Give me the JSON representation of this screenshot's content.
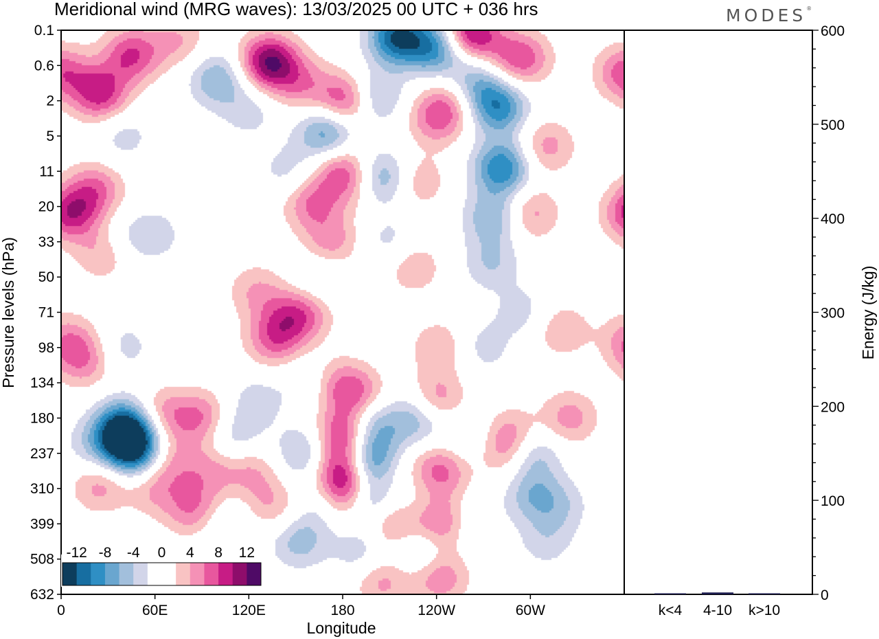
{
  "chart_data": {
    "type": "heatmap",
    "title": "Meridional wind (MRG waves):  13/03/2025  00 UTC  + 036 hrs",
    "brand": "MODES",
    "xlabel": "Longitude",
    "ylabel": "Pressure levels (hPa)",
    "x_ticks": [
      "0",
      "60E",
      "120E",
      "180",
      "120W",
      "60W"
    ],
    "y_ticks": [
      "0.1",
      "0.6",
      "2",
      "5",
      "11",
      "20",
      "33",
      "50",
      "71",
      "98",
      "134",
      "180",
      "237",
      "310",
      "399",
      "508",
      "632"
    ],
    "colorbar": {
      "labels": [
        "-12",
        "-8",
        "-4",
        "0",
        "4",
        "8",
        "12"
      ],
      "colors": [
        "#0d3d5c",
        "#176ea1",
        "#2f8fc4",
        "#6aa6cf",
        "#a2bfdc",
        "#d2d5e9",
        "#ffffff",
        "#ffffff",
        "#f9c3c3",
        "#f591b6",
        "#e8579e",
        "#c71c85",
        "#8e0d6b",
        "#4f0a66"
      ]
    },
    "energy_bar": {
      "ylabel": "Energy (J/kg)",
      "ylim": [
        0,
        600
      ],
      "y_ticks": [
        "0",
        "100",
        "200",
        "300",
        "400",
        "500",
        "600"
      ],
      "categories": [
        "k<4",
        "4-10",
        "k>10"
      ],
      "values": [
        0.5,
        2,
        0.5
      ]
    },
    "field_blobs": [
      {
        "x": 25,
        "y": 1.8,
        "v": 9
      },
      {
        "x": 45,
        "y": 0.7,
        "v": 8
      },
      {
        "x": 22,
        "y": 4.5,
        "v": 6
      },
      {
        "x": 0,
        "y": 1.2,
        "v": 7
      },
      {
        "x": 40,
        "y": 3.0,
        "v": -3
      },
      {
        "x": 75,
        "y": 0.3,
        "v": 4
      },
      {
        "x": 6,
        "y": 5.2,
        "v": 9
      },
      {
        "x": 28,
        "y": 6.3,
        "v": 5
      },
      {
        "x": 38,
        "y": 6.0,
        "v": -3
      },
      {
        "x": 60,
        "y": 5.8,
        "v": -3
      },
      {
        "x": 100,
        "y": 1.4,
        "v": -6
      },
      {
        "x": 133,
        "y": 0.9,
        "v": 12
      },
      {
        "x": 120,
        "y": 2.3,
        "v": -3
      },
      {
        "x": 145,
        "y": 4.0,
        "v": -3
      },
      {
        "x": 153,
        "y": 1.5,
        "v": 5
      },
      {
        "x": 160,
        "y": 4.9,
        "v": 6
      },
      {
        "x": 170,
        "y": 2.9,
        "v": -8
      },
      {
        "x": 180,
        "y": 4.0,
        "v": 7
      },
      {
        "x": 173,
        "y": 6.0,
        "v": 5
      },
      {
        "x": 182,
        "y": 2.0,
        "v": 9
      },
      {
        "x": 200,
        "y": 1.9,
        "v": -6
      },
      {
        "x": 205,
        "y": 4.2,
        "v": -7
      },
      {
        "x": 190,
        "y": 4.5,
        "v": 5
      },
      {
        "x": 215,
        "y": 0.2,
        "v": -12
      },
      {
        "x": 240,
        "y": 0.5,
        "v": -9
      },
      {
        "x": 270,
        "y": 1.0,
        "v": -5
      },
      {
        "x": 262,
        "y": 0.1,
        "v": 11
      },
      {
        "x": 275,
        "y": 0.9,
        "v": 5
      },
      {
        "x": 295,
        "y": 0.8,
        "v": 7
      },
      {
        "x": 240,
        "y": 2.5,
        "v": 6
      },
      {
        "x": 228,
        "y": 4.3,
        "v": 4
      },
      {
        "x": 265,
        "y": 1.6,
        "v": -5
      },
      {
        "x": 280,
        "y": 2.2,
        "v": -9
      },
      {
        "x": 282,
        "y": 3.9,
        "v": -10
      },
      {
        "x": 250,
        "y": 2.0,
        "v": 4
      },
      {
        "x": 276,
        "y": 5.3,
        "v": -6
      },
      {
        "x": 275,
        "y": 6.6,
        "v": -4
      },
      {
        "x": 300,
        "y": 5.2,
        "v": 5
      },
      {
        "x": 310,
        "y": 3.3,
        "v": 5
      },
      {
        "x": 190,
        "y": 4.5,
        "v": -3
      },
      {
        "x": 210,
        "y": 6.0,
        "v": -3
      },
      {
        "x": 225,
        "y": 6.7,
        "v": 4
      },
      {
        "x": 145,
        "y": 8.2,
        "v": 4
      },
      {
        "x": 125,
        "y": 7.4,
        "v": 4
      },
      {
        "x": 165,
        "y": 7.1,
        "v": -3
      },
      {
        "x": 136,
        "y": 8.8,
        "v": 6
      },
      {
        "x": 156,
        "y": 8.0,
        "v": 5
      },
      {
        "x": 4,
        "y": 8.8,
        "v": 5
      },
      {
        "x": 15,
        "y": 9.4,
        "v": 5
      },
      {
        "x": 40,
        "y": 9.0,
        "v": -3
      },
      {
        "x": 40,
        "y": 11.2,
        "v": -8
      },
      {
        "x": 42,
        "y": 11.6,
        "v": -10
      },
      {
        "x": 48,
        "y": 12.0,
        "v": -8
      },
      {
        "x": 20,
        "y": 11.8,
        "v": -3
      },
      {
        "x": 25,
        "y": 12.9,
        "v": 5
      },
      {
        "x": 65,
        "y": 10.9,
        "v": 5
      },
      {
        "x": 60,
        "y": 13.0,
        "v": 4
      },
      {
        "x": 70,
        "y": 12.2,
        "v": 4
      },
      {
        "x": 90,
        "y": 11.0,
        "v": 6
      },
      {
        "x": 85,
        "y": 13.6,
        "v": 6
      },
      {
        "x": 95,
        "y": 12.5,
        "v": 4
      },
      {
        "x": 110,
        "y": 11.5,
        "v": -4
      },
      {
        "x": 105,
        "y": 14.0,
        "v": -3
      },
      {
        "x": 125,
        "y": 10.5,
        "v": -3
      },
      {
        "x": 160,
        "y": 10.0,
        "v": -3
      },
      {
        "x": 122,
        "y": 12.5,
        "v": 4
      },
      {
        "x": 135,
        "y": 13.5,
        "v": 4
      },
      {
        "x": 155,
        "y": 12.0,
        "v": -5
      },
      {
        "x": 152,
        "y": 14.5,
        "v": -5
      },
      {
        "x": 170,
        "y": 13.5,
        "v": -4
      },
      {
        "x": 174,
        "y": 10.0,
        "v": 4
      },
      {
        "x": 182,
        "y": 11.5,
        "v": 10
      },
      {
        "x": 182,
        "y": 12.6,
        "v": 12
      },
      {
        "x": 184,
        "y": 13.4,
        "v": 9
      },
      {
        "x": 188,
        "y": 10.3,
        "v": 6
      },
      {
        "x": 196,
        "y": 12.3,
        "v": -11
      },
      {
        "x": 195,
        "y": 13.4,
        "v": -10
      },
      {
        "x": 198,
        "y": 11.3,
        "v": -7
      },
      {
        "x": 193,
        "y": 14.8,
        "v": -4
      },
      {
        "x": 210,
        "y": 14.0,
        "v": 6
      },
      {
        "x": 205,
        "y": 15.6,
        "v": 5
      },
      {
        "x": 212,
        "y": 12.8,
        "v": 4
      },
      {
        "x": 220,
        "y": 13.0,
        "v": -3
      },
      {
        "x": 228,
        "y": 11.0,
        "v": -6
      },
      {
        "x": 230,
        "y": 14.8,
        "v": -4
      },
      {
        "x": 242,
        "y": 9.0,
        "v": 4
      },
      {
        "x": 240,
        "y": 10.5,
        "v": 6
      },
      {
        "x": 242,
        "y": 12.5,
        "v": 7
      },
      {
        "x": 244,
        "y": 14.0,
        "v": 7
      },
      {
        "x": 242,
        "y": 15.5,
        "v": 6
      },
      {
        "x": 260,
        "y": 11.5,
        "v": -3
      },
      {
        "x": 260,
        "y": 14.0,
        "v": -3
      },
      {
        "x": 270,
        "y": 9.0,
        "v": -3
      },
      {
        "x": 285,
        "y": 12.0,
        "v": 4
      },
      {
        "x": 288,
        "y": 11.5,
        "v": 5
      },
      {
        "x": 300,
        "y": 12.0,
        "v": -6
      },
      {
        "x": 302,
        "y": 13.2,
        "v": -5
      },
      {
        "x": 295,
        "y": 8.0,
        "v": -3
      },
      {
        "x": 320,
        "y": 8.5,
        "v": 4
      },
      {
        "x": 325,
        "y": 11.0,
        "v": 5
      },
      {
        "x": 310,
        "y": 14.5,
        "v": -3
      },
      {
        "x": 320,
        "y": 13.5,
        "v": -3
      }
    ]
  }
}
